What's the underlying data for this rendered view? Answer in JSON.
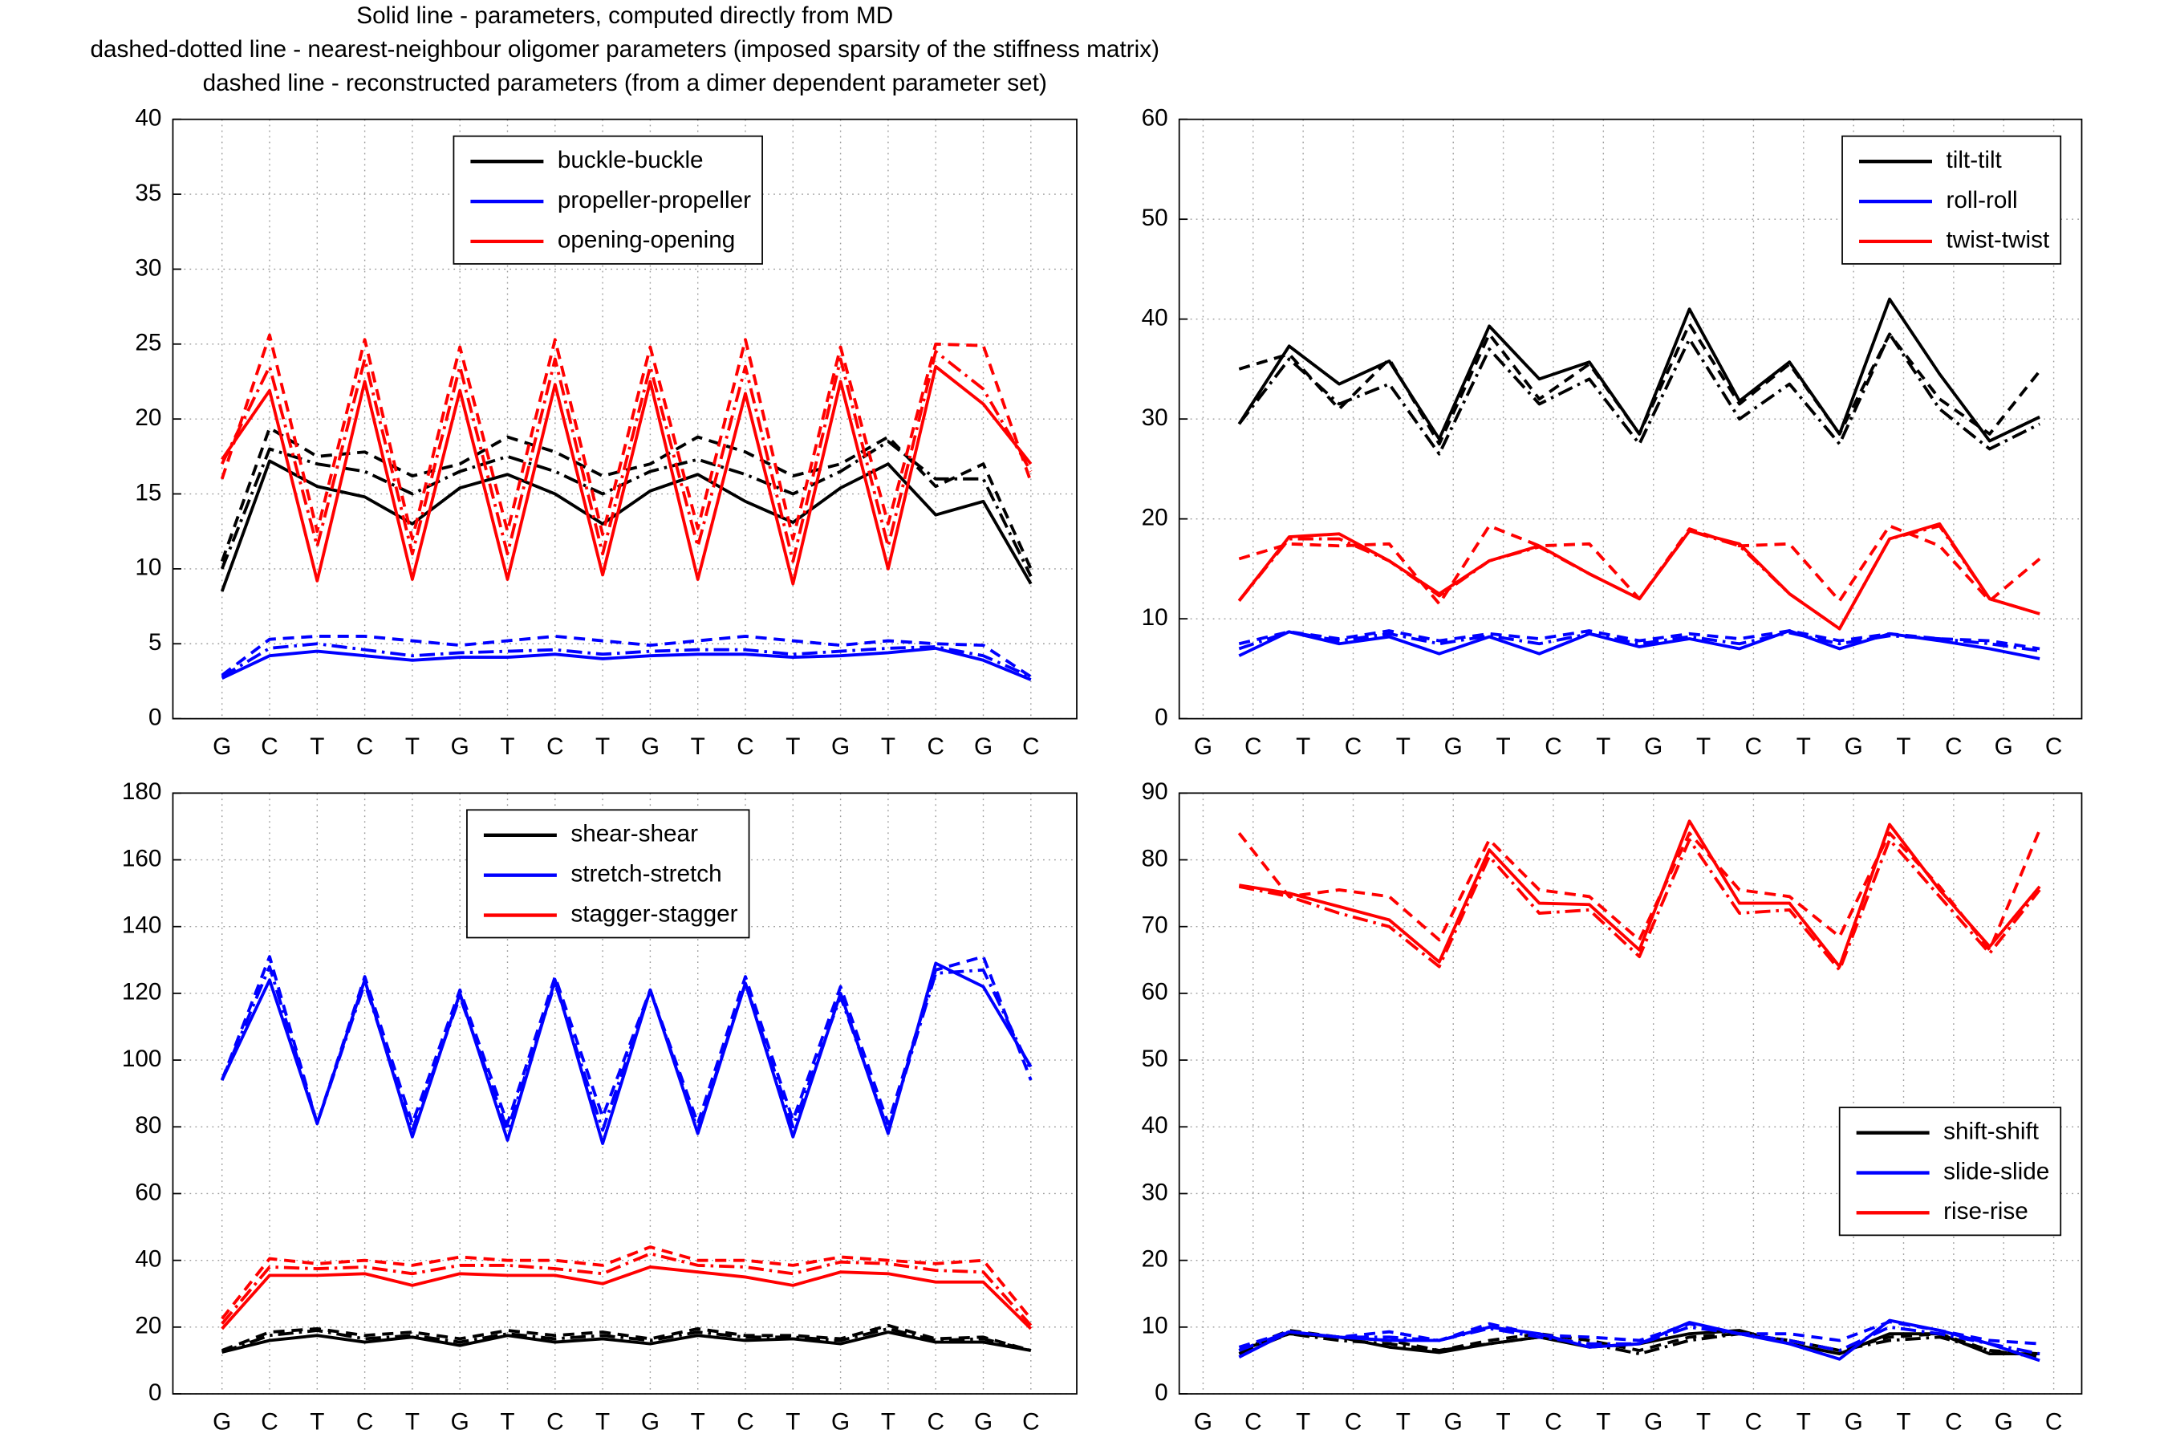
{
  "title": [
    "Solid line - parameters, computed directly from MD",
    "dashed-dotted line - nearest-neighbour oligomer parameters (imposed sparsity of the stiffness matrix)",
    "dashed line - reconstructed parameters (from a dimer dependent parameter set)"
  ],
  "chart_data": [
    {
      "type": "line",
      "categories": [
        "G",
        "C",
        "T",
        "C",
        "T",
        "G",
        "T",
        "C",
        "T",
        "G",
        "T",
        "C",
        "T",
        "G",
        "T",
        "C",
        "G",
        "C"
      ],
      "ylim": [
        0,
        40
      ],
      "yticks": [
        0,
        5,
        10,
        15,
        20,
        25,
        30,
        35,
        40
      ],
      "grid": true,
      "legend": "upper center",
      "series": [
        {
          "name": "buckle-buckle",
          "color": "#000000",
          "values": [
            8.5,
            17.2,
            15.5,
            14.8,
            13.0,
            15.4,
            16.3,
            15.0,
            13.0,
            15.2,
            16.3,
            14.5,
            13.1,
            15.4,
            17.0,
            13.6,
            14.5,
            9.0
          ],
          "dashdot": [
            10.0,
            18.0,
            17.0,
            16.5,
            15.0,
            16.5,
            17.5,
            16.5,
            15.0,
            16.5,
            17.3,
            16.3,
            15.0,
            16.5,
            18.5,
            16.0,
            16.0,
            9.5
          ],
          "dashed": [
            10.5,
            19.4,
            17.5,
            17.8,
            16.2,
            17.0,
            18.8,
            17.8,
            16.2,
            17.0,
            18.8,
            17.8,
            16.2,
            17.0,
            18.8,
            15.5,
            17.0,
            10.0
          ]
        },
        {
          "name": "propeller-propeller",
          "color": "#0000ff",
          "values": [
            2.7,
            4.2,
            4.5,
            4.2,
            3.9,
            4.1,
            4.1,
            4.3,
            4.0,
            4.2,
            4.3,
            4.3,
            4.1,
            4.2,
            4.4,
            4.7,
            3.9,
            2.6
          ],
          "dashdot": [
            2.8,
            4.7,
            5.0,
            4.6,
            4.2,
            4.4,
            4.5,
            4.6,
            4.3,
            4.5,
            4.6,
            4.6,
            4.3,
            4.5,
            4.7,
            4.8,
            4.2,
            2.8
          ],
          "dashed": [
            2.9,
            5.3,
            5.5,
            5.5,
            5.2,
            4.9,
            5.2,
            5.5,
            5.2,
            4.9,
            5.2,
            5.5,
            5.2,
            4.9,
            5.2,
            5.0,
            4.9,
            2.8
          ]
        },
        {
          "name": "opening-opening",
          "color": "#ff0000",
          "values": [
            17.3,
            21.9,
            9.2,
            22.5,
            9.3,
            21.9,
            9.3,
            22.3,
            9.6,
            22.5,
            9.3,
            21.7,
            9.0,
            22.5,
            10.0,
            23.5,
            21.0,
            17.0
          ],
          "dashdot": [
            17.0,
            23.5,
            11.5,
            24.0,
            11.0,
            23.5,
            11.0,
            24.0,
            11.0,
            23.5,
            11.5,
            23.5,
            10.5,
            24.0,
            11.5,
            24.5,
            22.0,
            16.5
          ],
          "dashed": [
            16.0,
            25.6,
            12.5,
            25.3,
            12.0,
            24.8,
            12.5,
            25.3,
            12.3,
            24.8,
            12.7,
            25.3,
            12.0,
            24.8,
            13.0,
            25.0,
            24.9,
            15.8
          ]
        }
      ]
    },
    {
      "type": "line",
      "categories": [
        "G",
        "C",
        "T",
        "C",
        "T",
        "G",
        "T",
        "C",
        "T",
        "G",
        "T",
        "C",
        "T",
        "G",
        "T",
        "C",
        "G",
        "C"
      ],
      "ylim": [
        0,
        60
      ],
      "yticks": [
        0,
        10,
        20,
        30,
        40,
        50,
        60
      ],
      "grid": true,
      "legend": "upper right",
      "series": [
        {
          "name": "tilt-tilt",
          "color": "#000000",
          "values": [
            null,
            29.5,
            37.3,
            33.5,
            35.8,
            28.0,
            39.3,
            34.0,
            35.7,
            28.5,
            41.0,
            31.8,
            35.7,
            28.5,
            42.0,
            34.5,
            27.8,
            30.2
          ],
          "dashdot": [
            null,
            29.5,
            36.0,
            31.5,
            33.5,
            26.5,
            37.0,
            31.5,
            34.0,
            27.5,
            38.0,
            30.0,
            33.5,
            27.5,
            38.5,
            31.0,
            27.0,
            29.5
          ],
          "dashed": [
            null,
            35.0,
            36.5,
            31.0,
            36.0,
            27.5,
            38.5,
            32.0,
            35.5,
            28.5,
            39.5,
            31.5,
            35.5,
            28.5,
            38.5,
            32.0,
            28.5,
            34.8
          ]
        },
        {
          "name": "roll-roll",
          "color": "#0000ff",
          "values": [
            null,
            6.3,
            8.7,
            7.5,
            8.2,
            6.5,
            8.2,
            6.5,
            8.5,
            7.2,
            8.0,
            7.0,
            8.8,
            7.0,
            8.5,
            7.8,
            7.0,
            6.0
          ],
          "dashdot": [
            null,
            7.0,
            8.7,
            7.8,
            8.5,
            7.5,
            8.3,
            7.5,
            8.5,
            7.5,
            8.2,
            7.5,
            8.6,
            7.5,
            8.3,
            8.0,
            7.5,
            6.8
          ],
          "dashed": [
            null,
            7.5,
            8.7,
            8.0,
            8.8,
            7.8,
            8.5,
            8.0,
            8.8,
            7.8,
            8.5,
            8.0,
            8.8,
            7.8,
            8.5,
            8.0,
            7.8,
            7.0
          ]
        },
        {
          "name": "twist-twist",
          "color": "#ff0000",
          "values": [
            null,
            11.8,
            18.2,
            18.5,
            15.8,
            12.5,
            15.8,
            17.3,
            14.5,
            12.0,
            18.8,
            17.5,
            12.5,
            9.0,
            18.0,
            19.5,
            12.0,
            10.5
          ],
          "dashdot": [
            null,
            11.8,
            18.0,
            18.0,
            15.8,
            12.3,
            15.8,
            17.2,
            14.5,
            12.0,
            18.8,
            17.3,
            12.5,
            9.0,
            18.0,
            19.3,
            12.0,
            10.5
          ],
          "dashed": [
            null,
            16.0,
            17.5,
            17.3,
            17.5,
            11.5,
            19.3,
            17.3,
            17.5,
            12.0,
            19.0,
            17.3,
            17.5,
            11.8,
            19.3,
            17.3,
            11.8,
            16.0
          ]
        }
      ]
    },
    {
      "type": "line",
      "categories": [
        "G",
        "C",
        "T",
        "C",
        "T",
        "G",
        "T",
        "C",
        "T",
        "G",
        "T",
        "C",
        "T",
        "G",
        "T",
        "C",
        "G",
        "C"
      ],
      "ylim": [
        0,
        180
      ],
      "yticks": [
        0,
        20,
        40,
        60,
        80,
        100,
        120,
        140,
        160,
        180
      ],
      "grid": true,
      "legend": "upper center",
      "series": [
        {
          "name": "shear-shear",
          "color": "#000000",
          "values": [
            12.5,
            16,
            17.5,
            15.5,
            17,
            14.5,
            17.5,
            15.5,
            16.5,
            15,
            17.5,
            16,
            16.5,
            15,
            18.5,
            15.5,
            15.5,
            13
          ],
          "dashdot": [
            12.5,
            17.5,
            19,
            16.5,
            17.5,
            15.5,
            18,
            16.5,
            17.5,
            16,
            18.5,
            17,
            17,
            16,
            19.5,
            16,
            16.5,
            13
          ],
          "dashed": [
            13,
            18.5,
            19.5,
            17.5,
            18.5,
            16.5,
            19,
            17.5,
            18.5,
            16.5,
            19.5,
            17.5,
            17.5,
            16.5,
            20.5,
            16.5,
            17,
            13
          ]
        },
        {
          "name": "stretch-stretch",
          "color": "#0000ff",
          "values": [
            94,
            124,
            81,
            124,
            77,
            120,
            76,
            124,
            75,
            121,
            78,
            123,
            77,
            120,
            78,
            129,
            122,
            98
          ],
          "dashdot": [
            94,
            128,
            81,
            123,
            79,
            119,
            79,
            123,
            79,
            121,
            79,
            123,
            80,
            119,
            79,
            126,
            127,
            97
          ],
          "dashed": [
            94,
            131,
            81,
            125,
            81,
            121,
            81,
            125,
            83,
            121,
            81,
            125,
            82,
            122,
            81,
            127,
            131,
            94
          ]
        },
        {
          "name": "stagger-stagger",
          "color": "#ff0000",
          "values": [
            19.5,
            35.5,
            35.5,
            36,
            32.5,
            36,
            35.5,
            35.5,
            33,
            38,
            36.5,
            35,
            32.5,
            36.5,
            36,
            33.5,
            33.5,
            19.5
          ],
          "dashdot": [
            21,
            38,
            37.5,
            38,
            36,
            38.5,
            38.5,
            37.5,
            36,
            42,
            38.5,
            38,
            36,
            39.5,
            39,
            37,
            36.5,
            20.5
          ],
          "dashed": [
            22.5,
            40.5,
            39,
            40,
            38.5,
            41,
            40,
            40,
            38.5,
            44,
            40,
            40,
            38.5,
            41,
            40,
            39,
            40,
            22.5
          ]
        }
      ]
    },
    {
      "type": "line",
      "categories": [
        "G",
        "C",
        "T",
        "C",
        "T",
        "G",
        "T",
        "C",
        "T",
        "G",
        "T",
        "C",
        "T",
        "G",
        "T",
        "C",
        "G",
        "C"
      ],
      "ylim": [
        0,
        90
      ],
      "yticks": [
        0,
        10,
        20,
        30,
        40,
        50,
        60,
        70,
        80,
        90
      ],
      "grid": true,
      "legend": "center right",
      "series": [
        {
          "name": "shift-shift",
          "color": "#000000",
          "values": [
            null,
            6.5,
            9,
            8.5,
            7,
            6.2,
            7.5,
            8.5,
            7,
            7.5,
            9,
            9.5,
            7.5,
            6,
            9,
            9,
            6,
            6
          ],
          "dashdot": [
            null,
            6,
            9,
            8,
            7.5,
            6.5,
            7.5,
            8.5,
            7.5,
            6,
            8,
            9,
            8,
            6.5,
            8,
            8.5,
            6.5,
            5.5
          ],
          "dashed": [
            null,
            6.5,
            9.5,
            8.5,
            8,
            6.5,
            8,
            9,
            8,
            6.5,
            8.5,
            9,
            8,
            6.5,
            8.5,
            9,
            6.5,
            6
          ]
        },
        {
          "name": "slide-slide",
          "color": "#0000ff",
          "values": [
            null,
            5.5,
            9.3,
            8.5,
            8,
            8,
            10,
            9,
            7,
            7.5,
            10.7,
            9,
            7.5,
            5.2,
            11,
            9.5,
            7.5,
            5
          ],
          "dashdot": [
            null,
            6.5,
            9.3,
            8.5,
            8.5,
            8,
            9.8,
            8.5,
            7.5,
            7.5,
            10,
            9,
            8,
            6.5,
            10,
            9,
            7.5,
            6
          ],
          "dashed": [
            null,
            7,
            9.3,
            8.5,
            9.3,
            8,
            10.5,
            8.8,
            8.5,
            8,
            10.5,
            9,
            9,
            8,
            10.8,
            9.5,
            8,
            7.5
          ]
        },
        {
          "name": "rise-rise",
          "color": "#ff0000",
          "values": [
            null,
            76.2,
            75,
            73,
            71,
            64.7,
            81.5,
            73.5,
            73.3,
            66.5,
            85.8,
            73.5,
            73.5,
            64,
            85.3,
            75.5,
            67,
            76
          ],
          "dashdot": [
            null,
            76,
            74.5,
            72,
            70,
            64,
            80.5,
            72,
            72.5,
            65.5,
            83,
            72,
            72.5,
            63.5,
            83,
            74.5,
            66,
            75.5
          ],
          "dashed": [
            null,
            84,
            74.5,
            75.5,
            74.5,
            68,
            83,
            75.5,
            74.5,
            68,
            84,
            75.5,
            74.5,
            68.5,
            84,
            76,
            66.5,
            84.5
          ]
        }
      ]
    }
  ]
}
